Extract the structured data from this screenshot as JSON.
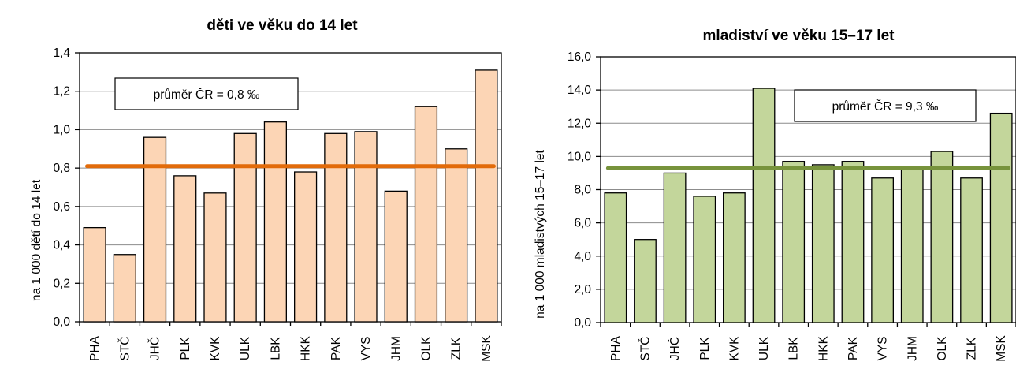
{
  "chart_data": [
    {
      "type": "bar",
      "title": "děti ve věku do 14 let",
      "ylabel": "na 1 000 dětí  do 14 let",
      "xlabel": "",
      "categories": [
        "PHA",
        "STČ",
        "JHČ",
        "PLK",
        "KVK",
        "ULK",
        "LBK",
        "HKK",
        "PAK",
        "VYS",
        "JHM",
        "OLK",
        "ZLK",
        "MSK"
      ],
      "values": [
        0.49,
        0.35,
        0.96,
        0.76,
        0.67,
        0.98,
        1.04,
        0.78,
        0.98,
        0.99,
        0.68,
        1.12,
        0.9,
        1.31
      ],
      "ylim": [
        0,
        1.4
      ],
      "yticks": [
        "0,0",
        "0,2",
        "0,4",
        "0,6",
        "0,8",
        "1,0",
        "1,2",
        "1,4"
      ],
      "grid": true,
      "bar_color": "#fcd5b5",
      "average": {
        "value": 0.81,
        "color": "#e26b0a",
        "label": "průměr ČR = 0,8 ‰"
      }
    },
    {
      "type": "bar",
      "title": "mladiství ve věku 15–17 let",
      "ylabel": "na 1 000 mladistvých 15–17 let",
      "xlabel": "",
      "categories": [
        "PHA",
        "STČ",
        "JHČ",
        "PLK",
        "KVK",
        "ULK",
        "LBK",
        "HKK",
        "PAK",
        "VYS",
        "JHM",
        "OLK",
        "ZLK",
        "MSK"
      ],
      "values": [
        7.8,
        5.0,
        9.0,
        7.6,
        7.8,
        14.1,
        9.7,
        9.5,
        9.7,
        8.7,
        9.3,
        10.3,
        8.7,
        12.6
      ],
      "ylim": [
        0,
        16
      ],
      "yticks": [
        "0,0",
        "2,0",
        "4,0",
        "6,0",
        "8,0",
        "10,0",
        "12,0",
        "14,0",
        "16,0"
      ],
      "grid": true,
      "bar_color": "#c3d69b",
      "average": {
        "value": 9.3,
        "color": "#77933c",
        "label": "průměr ČR = 9,3 ‰"
      }
    }
  ]
}
